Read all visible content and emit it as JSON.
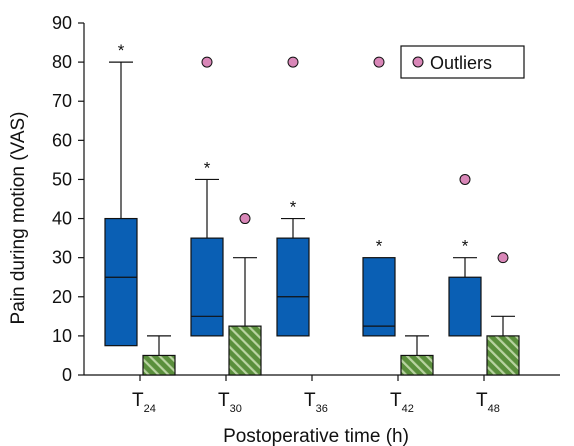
{
  "chart_data": {
    "type": "box",
    "xlabel": "Postoperative time (h)",
    "ylabel": "Pain during motion (VAS)",
    "ylim": [
      0,
      90
    ],
    "yticks": [
      0,
      10,
      20,
      30,
      40,
      50,
      60,
      70,
      80,
      90
    ],
    "categories": [
      {
        "main": "T",
        "sub": "24"
      },
      {
        "main": "T",
        "sub": "30"
      },
      {
        "main": "T",
        "sub": "36"
      },
      {
        "main": "T",
        "sub": "42"
      },
      {
        "main": "T",
        "sub": "48"
      }
    ],
    "series": [
      {
        "id": "blue",
        "color": "#0a5fb4",
        "pattern": "solid",
        "boxes": [
          {
            "whisker_low": 0,
            "q1": 7.5,
            "median": 25,
            "q3": 40,
            "whisker_high": 80,
            "outliers": [],
            "star": true
          },
          {
            "whisker_low": 0,
            "q1": 10,
            "median": 15,
            "q3": 35,
            "whisker_high": 50,
            "outliers": [
              80
            ],
            "star": true
          },
          {
            "whisker_low": 0,
            "q1": 10,
            "median": 20,
            "q3": 35,
            "whisker_high": 40,
            "outliers": [
              80
            ],
            "star": true
          },
          {
            "whisker_low": 0,
            "q1": 10,
            "median": 12.5,
            "q3": 30,
            "whisker_high": 30,
            "outliers": [
              80
            ],
            "star": true
          },
          {
            "whisker_low": 0,
            "q1": 10,
            "median": 10,
            "q3": 25,
            "whisker_high": 30,
            "outliers": [
              50
            ],
            "star": true
          }
        ]
      },
      {
        "id": "green",
        "color": "#5a8f3c",
        "pattern": "hatched",
        "boxes": [
          {
            "whisker_low": 0,
            "q1": 0,
            "median": 0,
            "q3": 5,
            "whisker_high": 10,
            "outliers": []
          },
          {
            "whisker_low": 0,
            "q1": 0,
            "median": 0,
            "q3": 12.5,
            "whisker_high": 30,
            "outliers": [
              40
            ]
          },
          {
            "whisker_low": 0,
            "q1": 0,
            "median": 0,
            "q3": 0,
            "whisker_high": 0,
            "outliers": []
          },
          {
            "whisker_low": 0,
            "q1": 0,
            "median": 0,
            "q3": 5,
            "whisker_high": 10,
            "outliers": []
          },
          {
            "whisker_low": 0,
            "q1": 0,
            "median": 0,
            "q3": 10,
            "whisker_high": 15,
            "outliers": [
              30
            ]
          }
        ]
      }
    ],
    "star_symbol": "*",
    "legend": {
      "label": "Outliers",
      "placement": "top-right",
      "marker_color": "#d987b8"
    },
    "grid": false
  }
}
